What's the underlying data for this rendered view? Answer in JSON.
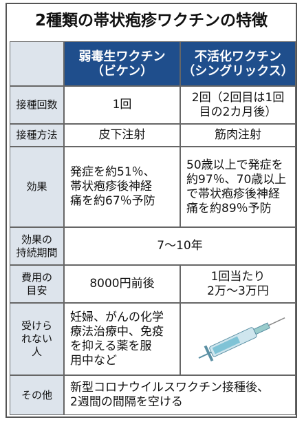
{
  "title": "2種類の帯状疱疹ワクチンの特徴",
  "table": {
    "headers": [
      [
        "弱毒生ワクチン",
        "（ビケン）"
      ],
      [
        "不活化ワクチン",
        "（シングリックス）"
      ]
    ],
    "rows": [
      {
        "label": [
          "接種回数"
        ],
        "cells": [
          [
            "1回"
          ],
          [
            "2回（2回目は1回",
            "目の2カ月後）"
          ]
        ]
      },
      {
        "label": [
          "接種方法"
        ],
        "cells": [
          [
            "皮下注射"
          ],
          [
            "筋肉注射"
          ]
        ]
      },
      {
        "label": [
          "効果"
        ],
        "cells": [
          [
            "発症を約51％、",
            "帯状疱疹後神経",
            "痛を約67％予防"
          ],
          [
            "50歳以上で発症を",
            "約97％、70歳以上",
            "で帯状疱疹後神経",
            "痛を約89％予防"
          ]
        ]
      },
      {
        "label": [
          "効果の",
          "持続期間"
        ],
        "cells": [
          [
            "7～10年"
          ]
        ]
      },
      {
        "label": [
          "費用の",
          "目安"
        ],
        "cells": [
          [
            "8000円前後"
          ],
          [
            "1回当たり",
            "2万～3万円"
          ]
        ]
      },
      {
        "label": [
          "受けら",
          "れない",
          "人"
        ],
        "cells": [
          [
            "妊婦、がんの化学",
            "療法治療中、免疫",
            "を抑える薬を服",
            "用中など"
          ]
        ]
      },
      {
        "label": [
          "その他"
        ],
        "cells": [
          [
            "新型コロナウイルスワクチン接種後、",
            "2週間の間隔を空ける"
          ]
        ]
      }
    ]
  }
}
